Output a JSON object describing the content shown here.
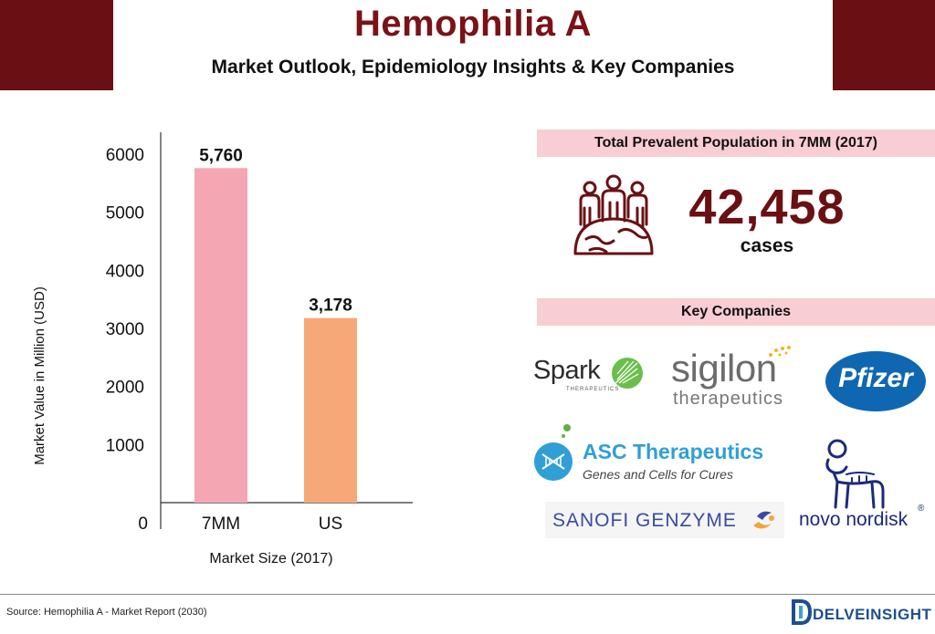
{
  "header": {
    "title": "Hemophilia A",
    "subtitle": "Market Outlook, Epidemiology Insights & Key Companies",
    "brand_color": "#6a1014"
  },
  "chart_data": {
    "type": "bar",
    "categories": [
      "7MM",
      "US"
    ],
    "values": [
      5760,
      3178
    ],
    "value_labels": [
      "5,760",
      "3,178"
    ],
    "bar_colors": [
      "#f4a6b2",
      "#f6a878"
    ],
    "xlabel": "Market Size (2017)",
    "ylabel": "Market Value in Million (USD)",
    "ylim": [
      0,
      6000
    ],
    "yticks": [
      0,
      1000,
      2000,
      3000,
      4000,
      5000,
      6000
    ],
    "ytick_labels": [
      "0",
      "1000",
      "2000",
      "3000",
      "4000",
      "5000",
      "6000"
    ],
    "grid": false
  },
  "prevalence": {
    "band_label": "Total Prevalent Population in 7MM (2017)",
    "value": "42,458",
    "unit": "cases",
    "icon": "people-globe-icon"
  },
  "key_companies": {
    "band_label": "Key Companies",
    "logos": {
      "spark": {
        "name": "Spark",
        "tagline": "THERAPEUTICS"
      },
      "sigilon": {
        "name": "sigilon",
        "tagline": "therapeutics"
      },
      "pfizer": {
        "name": "Pfizer"
      },
      "asc": {
        "name": "ASC Therapeutics",
        "tagline": "Genes and Cells for Cures"
      },
      "sanofi": {
        "name": "SANOFI GENZYME"
      },
      "novo": {
        "name": "novo nordisk",
        "mark": "®"
      }
    }
  },
  "footer": {
    "source": "Source: Hemophilia A - Market Report (2030)",
    "brand": "DELVEINSIGHT"
  }
}
